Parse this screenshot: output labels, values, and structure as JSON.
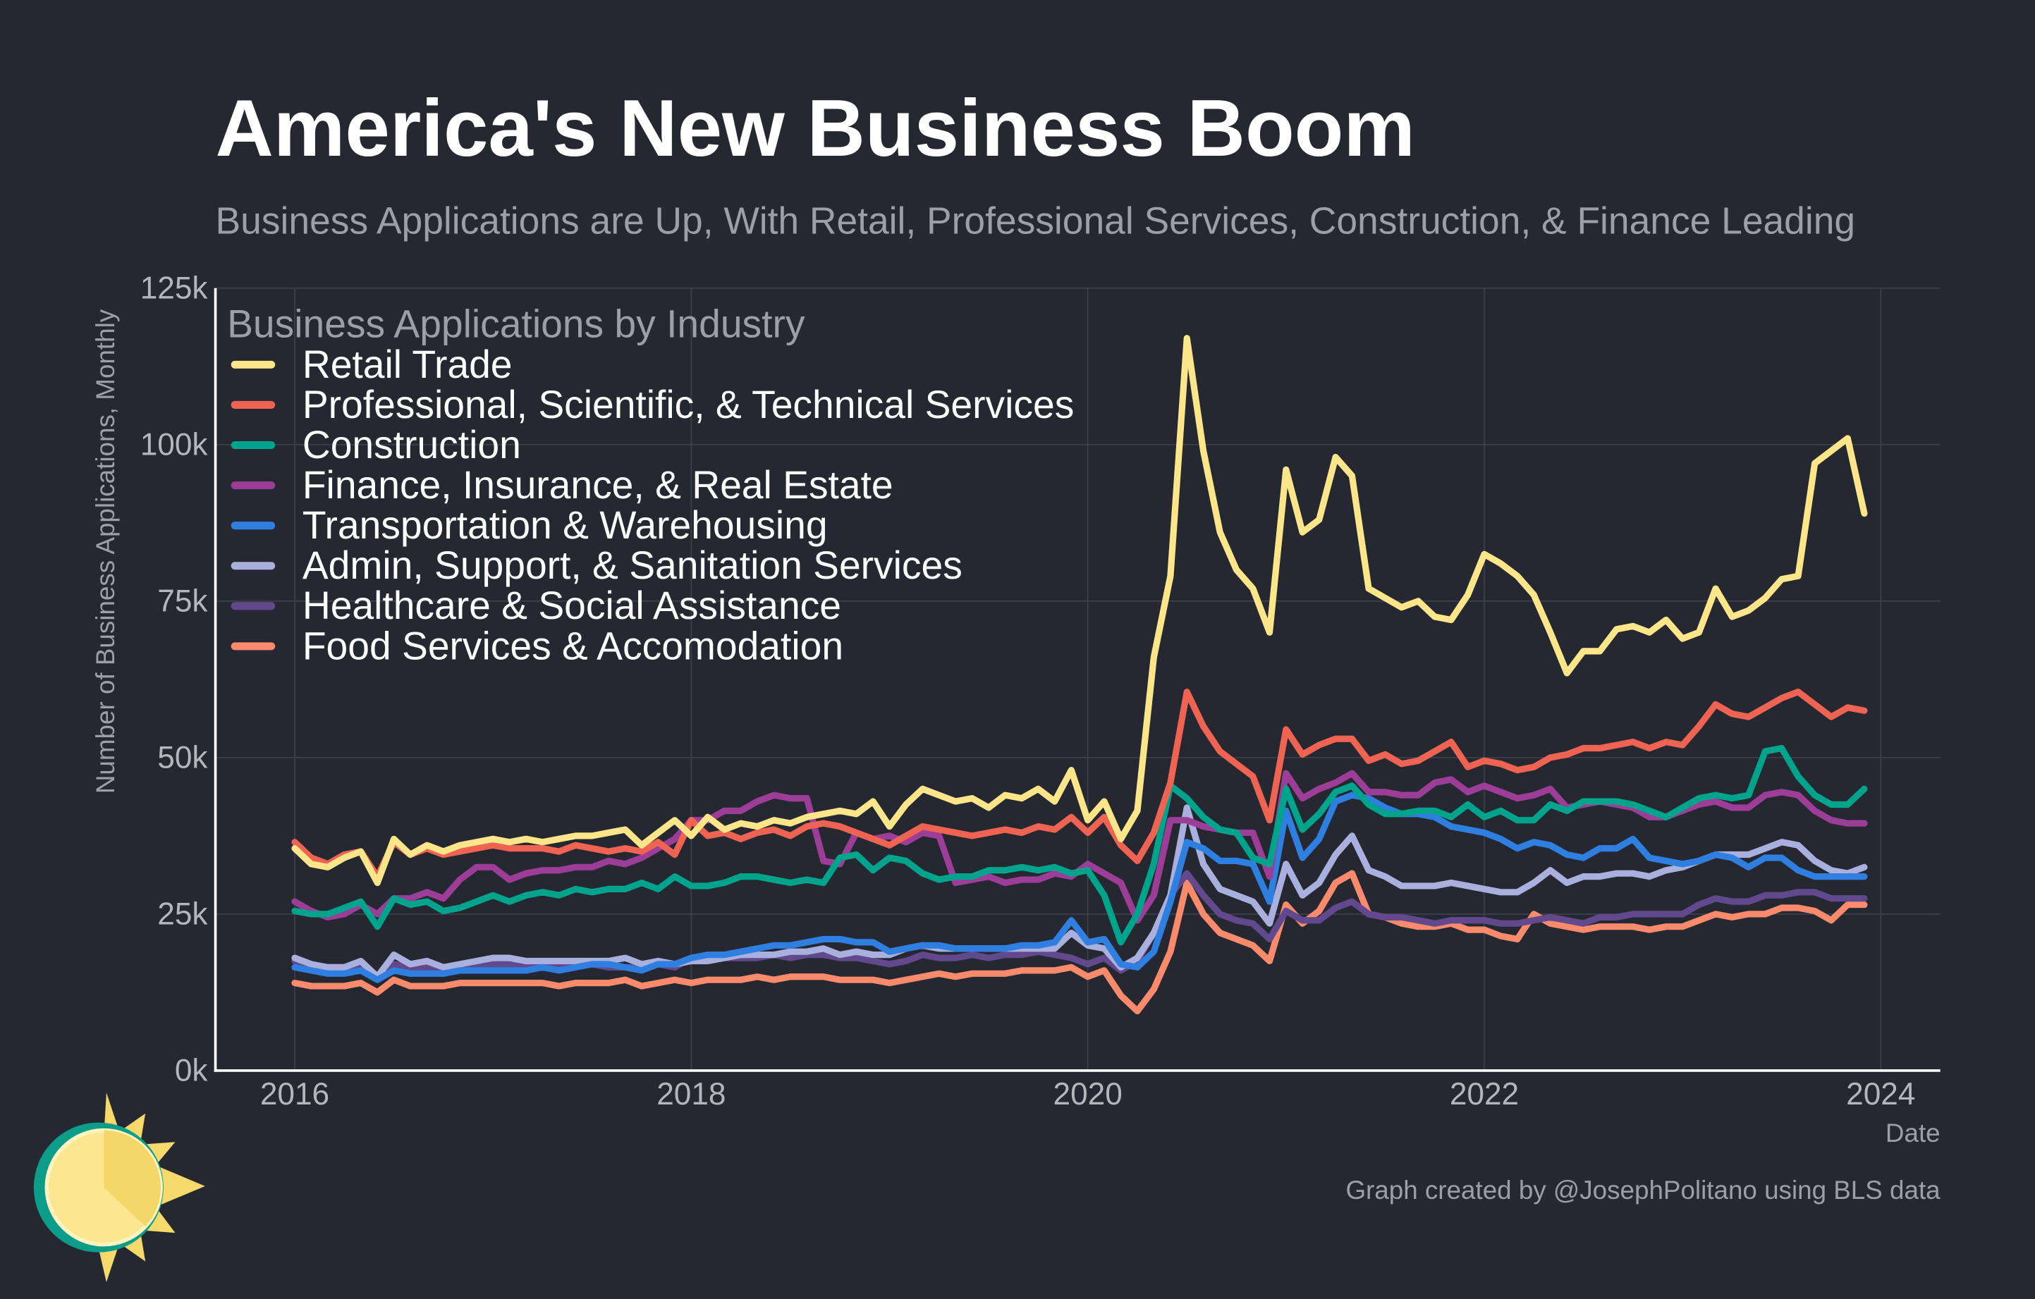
{
  "chart_data": {
    "type": "line",
    "title": "America's New Business Boom",
    "subtitle": "Business Applications are Up, With Retail, Professional Services, Construction, & Finance Leading",
    "y_label": "Number of Business Applications, Monthly",
    "x_label": "Date",
    "legend_title": "Business Applications by Industry",
    "credit": "Graph created by @JosephPolitano using BLS data",
    "legend": "upper left",
    "grid": true,
    "xlim": [
      2015.6,
      2024.3
    ],
    "xticks": [
      2016,
      2018,
      2020,
      2022,
      2024
    ],
    "ylim": [
      0,
      125000
    ],
    "yticks": [
      {
        "value": 0,
        "label": "0k"
      },
      {
        "value": 25000,
        "label": "25k"
      },
      {
        "value": 50000,
        "label": "50k"
      },
      {
        "value": 75000,
        "label": "75k"
      },
      {
        "value": 100000,
        "label": "100k"
      },
      {
        "value": 125000,
        "label": "125k"
      }
    ],
    "x": [
      2016,
      2016.083,
      2016.167,
      2016.25,
      2016.333,
      2016.417,
      2016.5,
      2016.583,
      2016.667,
      2016.75,
      2016.833,
      2016.917,
      2017,
      2017.083,
      2017.167,
      2017.25,
      2017.333,
      2017.417,
      2017.5,
      2017.583,
      2017.667,
      2017.75,
      2017.833,
      2017.917,
      2018,
      2018.083,
      2018.167,
      2018.25,
      2018.333,
      2018.417,
      2018.5,
      2018.583,
      2018.667,
      2018.75,
      2018.833,
      2018.917,
      2019,
      2019.083,
      2019.167,
      2019.25,
      2019.333,
      2019.417,
      2019.5,
      2019.583,
      2019.667,
      2019.75,
      2019.833,
      2019.917,
      2020,
      2020.083,
      2020.167,
      2020.25,
      2020.333,
      2020.417,
      2020.5,
      2020.583,
      2020.667,
      2020.75,
      2020.833,
      2020.917,
      2021,
      2021.083,
      2021.167,
      2021.25,
      2021.333,
      2021.417,
      2021.5,
      2021.583,
      2021.667,
      2021.75,
      2021.833,
      2021.917,
      2022,
      2022.083,
      2022.167,
      2022.25,
      2022.333,
      2022.417,
      2022.5,
      2022.583,
      2022.667,
      2022.75,
      2022.833,
      2022.917,
      2023,
      2023.083,
      2023.167,
      2023.25,
      2023.333,
      2023.417,
      2023.5,
      2023.583,
      2023.667,
      2023.75,
      2023.833,
      2023.917
    ],
    "series": [
      {
        "name": "Retail Trade",
        "color": "#fde68a",
        "values": [
          35500,
          33000,
          32500,
          34000,
          35000,
          30000,
          37000,
          34500,
          36000,
          35000,
          36000,
          36500,
          37000,
          36500,
          37000,
          36500,
          37000,
          37500,
          37500,
          38000,
          38500,
          36000,
          38000,
          40000,
          37500,
          40500,
          38500,
          39500,
          39000,
          40000,
          39500,
          40500,
          41000,
          41500,
          41000,
          43000,
          39000,
          42500,
          45000,
          44000,
          43000,
          43500,
          42000,
          44000,
          43500,
          45000,
          43000,
          48000,
          40000,
          43000,
          37000,
          41500,
          66000,
          79000,
          117000,
          99000,
          86000,
          80000,
          77000,
          70000,
          96000,
          86000,
          88000,
          98000,
          95000,
          77000,
          75500,
          74000,
          75000,
          72500,
          72000,
          76000,
          82500,
          81000,
          79000,
          76000,
          70000,
          63500,
          67000,
          67000,
          70500,
          71000,
          70000,
          72000,
          69000,
          70000,
          77000,
          72500,
          73500,
          75500,
          78500,
          79000,
          97000,
          99000,
          101000,
          89000
        ]
      },
      {
        "name": "Professional, Scientific, & Technical Services",
        "color": "#ee6352",
        "values": [
          36500,
          34000,
          33000,
          34500,
          35000,
          31000,
          36500,
          34500,
          35500,
          34500,
          35000,
          35500,
          36000,
          35500,
          35500,
          35500,
          35000,
          36000,
          35500,
          35000,
          35500,
          35000,
          36500,
          34500,
          40000,
          37500,
          38000,
          37000,
          38000,
          38500,
          37500,
          39000,
          39500,
          39000,
          38000,
          37000,
          36000,
          37500,
          39000,
          38500,
          38000,
          37500,
          38000,
          38500,
          38000,
          39000,
          38500,
          40500,
          38000,
          40500,
          36000,
          33500,
          38000,
          46000,
          60500,
          55000,
          51000,
          49000,
          47000,
          40000,
          54500,
          50500,
          52000,
          53000,
          53000,
          49500,
          50500,
          49000,
          49500,
          51000,
          52500,
          48500,
          49500,
          49000,
          48000,
          48500,
          50000,
          50500,
          51500,
          51500,
          52000,
          52500,
          51500,
          52500,
          52000,
          55000,
          58500,
          57000,
          56500,
          58000,
          59500,
          60500,
          58500,
          56500,
          58000,
          57500
        ]
      },
      {
        "name": "Construction",
        "color": "#00a48c",
        "values": [
          25500,
          25000,
          25000,
          26000,
          27000,
          23000,
          27500,
          26500,
          27000,
          25500,
          26000,
          27000,
          28000,
          27000,
          28000,
          28500,
          28000,
          29000,
          28500,
          29000,
          29000,
          30000,
          29000,
          31000,
          29500,
          29500,
          30000,
          31000,
          31000,
          30500,
          30000,
          30500,
          30000,
          34000,
          34500,
          32000,
          34000,
          33500,
          31500,
          30500,
          31000,
          31000,
          32000,
          32000,
          32500,
          32000,
          32500,
          31500,
          32000,
          28000,
          20500,
          25000,
          33000,
          45500,
          43500,
          40500,
          38500,
          38000,
          34000,
          33000,
          45000,
          38500,
          41000,
          44500,
          45500,
          42500,
          41000,
          41000,
          41500,
          41500,
          40500,
          42500,
          40500,
          41500,
          40000,
          40000,
          42500,
          41500,
          43000,
          43000,
          43000,
          42500,
          41500,
          40500,
          42000,
          43500,
          44000,
          43500,
          44000,
          51000,
          51500,
          47000,
          44000,
          42500,
          42500,
          45000
        ]
      },
      {
        "name": "Finance, Insurance, & Real Estate",
        "color": "#9c3d98",
        "values": [
          27000,
          25500,
          24500,
          25000,
          26500,
          25000,
          27500,
          27500,
          28500,
          27500,
          30500,
          32500,
          32500,
          30500,
          31500,
          32000,
          32000,
          32500,
          32500,
          33500,
          33000,
          34000,
          35500,
          37000,
          40000,
          40000,
          41500,
          41500,
          43000,
          44000,
          43500,
          43500,
          33500,
          33000,
          38000,
          37000,
          37500,
          36500,
          38000,
          37500,
          30000,
          30500,
          31000,
          30000,
          30500,
          30500,
          31500,
          31000,
          33000,
          31500,
          30000,
          24000,
          28000,
          40000,
          40000,
          39000,
          38500,
          38000,
          38000,
          31000,
          47500,
          43500,
          45000,
          46000,
          47500,
          44500,
          44500,
          44000,
          44000,
          46000,
          46500,
          44500,
          45500,
          44500,
          43500,
          44000,
          45000,
          42000,
          42500,
          43000,
          42500,
          42000,
          40500,
          40500,
          41500,
          42500,
          43000,
          42000,
          42000,
          44000,
          44500,
          44000,
          41500,
          40000,
          39500,
          39500
        ]
      },
      {
        "name": "Transportation & Warehousing",
        "color": "#2e7fe0",
        "values": [
          16500,
          16000,
          15500,
          15500,
          16000,
          14500,
          16000,
          15500,
          15500,
          15500,
          16000,
          16000,
          16000,
          16000,
          16000,
          16500,
          16000,
          16500,
          17000,
          17000,
          16500,
          16000,
          17000,
          17000,
          18000,
          18500,
          18500,
          19000,
          19500,
          20000,
          20000,
          20500,
          21000,
          21000,
          20500,
          20500,
          19000,
          19500,
          20000,
          20000,
          19500,
          19500,
          19500,
          19500,
          20000,
          20000,
          20500,
          24000,
          20500,
          21000,
          17000,
          16500,
          19000,
          27000,
          36500,
          35500,
          33500,
          33500,
          33000,
          27000,
          41500,
          34000,
          37000,
          43000,
          44000,
          43500,
          42000,
          41000,
          41000,
          40500,
          39000,
          38500,
          38000,
          37000,
          35500,
          36500,
          36000,
          34500,
          34000,
          35500,
          35500,
          37000,
          34000,
          33500,
          33000,
          33500,
          34500,
          34000,
          32500,
          34000,
          34000,
          32000,
          31000,
          31000,
          31000,
          31000
        ]
      },
      {
        "name": "Admin, Support, & Sanitation Services",
        "color": "#a9b0dd",
        "values": [
          18000,
          17000,
          16500,
          16500,
          17500,
          15000,
          18500,
          17000,
          17500,
          16500,
          17000,
          17500,
          18000,
          18000,
          17500,
          17500,
          17500,
          17500,
          17500,
          17500,
          18000,
          17000,
          17500,
          17000,
          17500,
          17500,
          18000,
          18500,
          18500,
          18500,
          19000,
          19000,
          19500,
          18500,
          19000,
          18500,
          18500,
          19500,
          20000,
          19500,
          19500,
          19500,
          19500,
          19500,
          19500,
          19500,
          19500,
          22000,
          20000,
          19500,
          16500,
          18000,
          22000,
          28000,
          42000,
          33000,
          29000,
          28000,
          27000,
          23500,
          33000,
          28000,
          30000,
          34500,
          37500,
          32000,
          31000,
          29500,
          29500,
          29500,
          30000,
          29500,
          29000,
          28500,
          28500,
          30000,
          32000,
          30000,
          31000,
          31000,
          31500,
          31500,
          31000,
          32000,
          32500,
          33500,
          34500,
          34500,
          34500,
          35500,
          36500,
          36000,
          33500,
          32000,
          31500,
          32500
        ]
      },
      {
        "name": "Healthcare & Social Assistance",
        "color": "#62498e",
        "values": [
          17500,
          16500,
          16500,
          16500,
          17000,
          15000,
          17000,
          16500,
          16500,
          16000,
          16500,
          16500,
          17000,
          17000,
          16500,
          17000,
          16500,
          17000,
          17000,
          16500,
          16500,
          16500,
          17000,
          16500,
          18000,
          18000,
          18000,
          18000,
          18000,
          18500,
          18000,
          18500,
          18500,
          18000,
          18000,
          17500,
          17000,
          17500,
          18500,
          18000,
          18000,
          18500,
          18000,
          18500,
          18500,
          19000,
          18500,
          18000,
          17000,
          18000,
          16000,
          17500,
          22000,
          28000,
          31500,
          28000,
          25000,
          24000,
          23500,
          21000,
          25500,
          24000,
          24000,
          26000,
          27000,
          25000,
          24500,
          24500,
          24000,
          23500,
          24000,
          24000,
          24000,
          23500,
          23500,
          24000,
          24500,
          24000,
          23500,
          24500,
          24500,
          25000,
          25000,
          25000,
          25000,
          26500,
          27500,
          27000,
          27000,
          28000,
          28000,
          28500,
          28500,
          27500,
          27500,
          27500
        ]
      },
      {
        "name": "Food Services & Accomodation",
        "color": "#f98b6c",
        "values": [
          14000,
          13500,
          13500,
          13500,
          14000,
          12500,
          14500,
          13500,
          13500,
          13500,
          14000,
          14000,
          14000,
          14000,
          14000,
          14000,
          13500,
          14000,
          14000,
          14000,
          14500,
          13500,
          14000,
          14500,
          14000,
          14500,
          14500,
          14500,
          15000,
          14500,
          15000,
          15000,
          15000,
          14500,
          14500,
          14500,
          14000,
          14500,
          15000,
          15500,
          15000,
          15500,
          15500,
          15500,
          16000,
          16000,
          16000,
          16500,
          15000,
          16000,
          12000,
          9500,
          13000,
          19000,
          30000,
          25000,
          22000,
          21000,
          20000,
          17500,
          26500,
          23500,
          25500,
          30000,
          31500,
          25000,
          24500,
          23500,
          23000,
          23000,
          23500,
          22500,
          22500,
          21500,
          21000,
          25000,
          23500,
          23000,
          22500,
          23000,
          23000,
          23000,
          22500,
          23000,
          23000,
          24000,
          25000,
          24500,
          25000,
          25000,
          26000,
          26000,
          25500,
          24000,
          26500,
          26500
        ]
      }
    ]
  }
}
